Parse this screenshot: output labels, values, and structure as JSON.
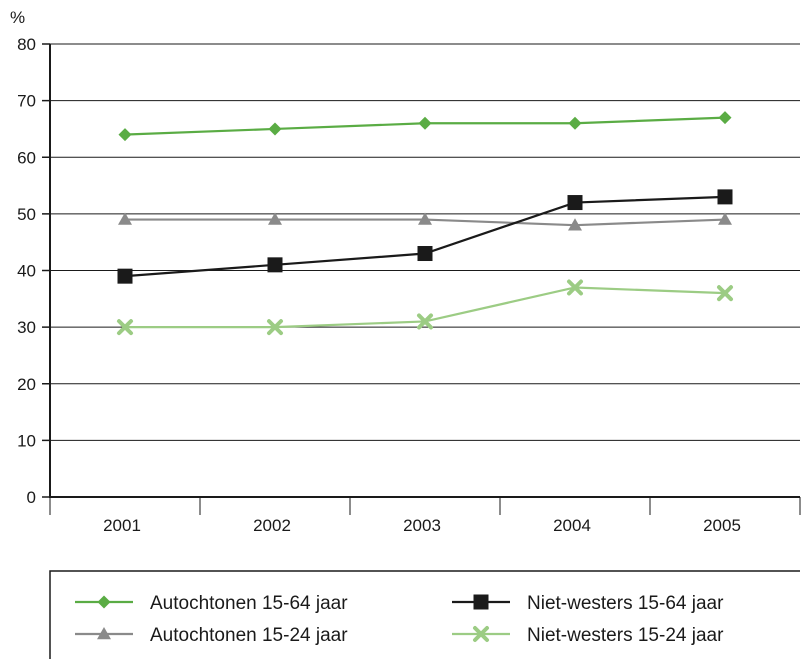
{
  "chart_data": {
    "type": "line",
    "y_unit": "%",
    "ylim": [
      0,
      80
    ],
    "y_ticks": [
      0,
      10,
      20,
      30,
      40,
      50,
      60,
      70,
      80
    ],
    "categories": [
      "2001",
      "2002",
      "2003",
      "2004",
      "2005"
    ],
    "grid": "horizontal",
    "legend_position": "bottom",
    "series": [
      {
        "name": "Autochtonen 15-64 jaar",
        "values": [
          64,
          65,
          66,
          66,
          67
        ],
        "color": "#5aac44",
        "marker": "diamond"
      },
      {
        "name": "Niet-westers 15-64 jaar",
        "values": [
          39,
          41,
          43,
          52,
          53
        ],
        "color": "#1a1a1a",
        "marker": "square"
      },
      {
        "name": "Autochtonen 15-24 jaar",
        "values": [
          49,
          49,
          49,
          48,
          49
        ],
        "color": "#8a8a8a",
        "marker": "triangle"
      },
      {
        "name": "Niet-westers 15-24 jaar",
        "values": [
          30,
          30,
          31,
          37,
          36
        ],
        "color": "#9ccc84",
        "marker": "x"
      }
    ]
  }
}
